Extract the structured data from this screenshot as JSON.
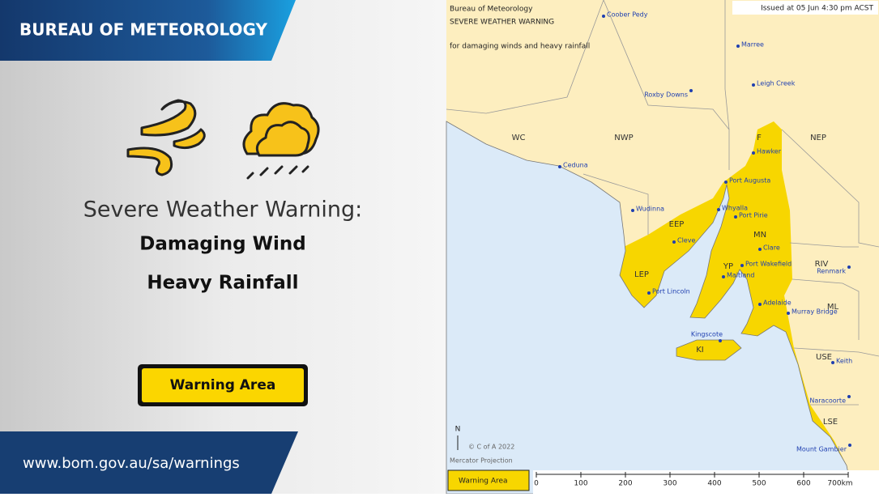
{
  "header": {
    "agency": "BUREAU OF METEOROLOGY"
  },
  "headline": {
    "prefix": "Severe Weather Warning:",
    "hazards": [
      "Damaging Wind",
      "Heavy Rainfall"
    ]
  },
  "legend_button": "Warning Area",
  "footer": {
    "url": "www.bom.gov.au/sa/warnings"
  },
  "map": {
    "agency": "Bureau of Meteorology",
    "title": "SEVERE WEATHER WARNING",
    "subtitle": "for damaging winds and heavy rainfall",
    "issued": "Issued at 05 Jun 4:30 pm ACST",
    "districts": [
      "WC",
      "NWP",
      "NEP",
      "F",
      "EEP",
      "MN",
      "RIV",
      "LEP",
      "YP",
      "ML",
      "KI",
      "USE",
      "LSE"
    ],
    "towns": [
      "Coober Pedy",
      "Marree",
      "Leigh Creek",
      "Roxby Downs",
      "Hawker",
      "Ceduna",
      "Port Augusta",
      "Wudinna",
      "Whyalla",
      "Port Pirie",
      "Cleve",
      "Clare",
      "Port Wakefield",
      "Renmark",
      "Maitland",
      "Port Lincoln",
      "Adelaide",
      "Murray Bridge",
      "Kingscote",
      "Keith",
      "Naracoorte",
      "Mount Gambier"
    ],
    "north": "N",
    "copyright": "© C of A 2022",
    "projection": "Mercator Projection",
    "legend": "Warning Area",
    "scale": [
      "0",
      "100",
      "200",
      "300",
      "400",
      "500",
      "600",
      "700km"
    ]
  }
}
